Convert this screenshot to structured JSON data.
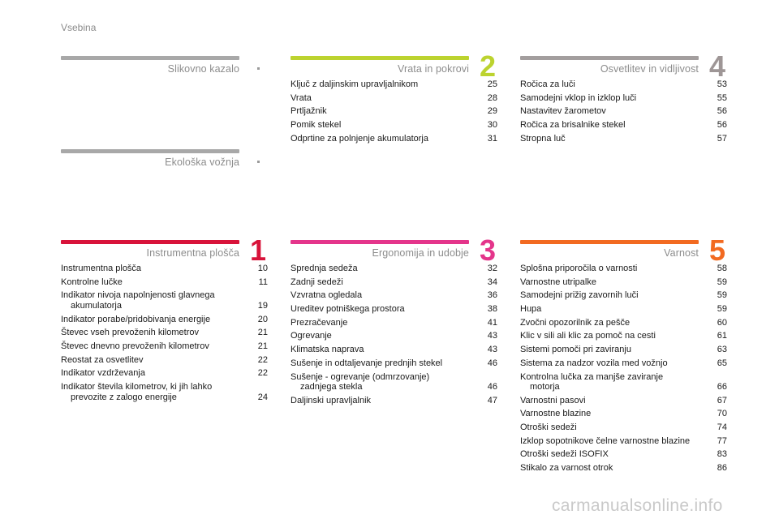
{
  "header": "Vsebina",
  "colors": {
    "gray": "#9e9e9e",
    "green": "#bcd32f",
    "red": "#d8133a",
    "pink": "#e4358b",
    "orange": "#f26a21",
    "gray4": "#9e9e9e"
  },
  "sec_slikovno": {
    "title": "Slikovno kazalo"
  },
  "sec_ekoloska": {
    "title": "Ekološka vožnja"
  },
  "sec_2": {
    "title": "Vrata in pokrovi",
    "num": "2",
    "entries": [
      {
        "label": "Ključ z daljinskim upravljalnikom",
        "page": "25"
      },
      {
        "label": "Vrata",
        "page": "28"
      },
      {
        "label": "Prtljažnik",
        "page": "29"
      },
      {
        "label": "Pomik stekel",
        "page": "30"
      },
      {
        "label": "Odprtine za polnjenje akumulatorja",
        "page": "31"
      }
    ]
  },
  "sec_4": {
    "title": "Osvetlitev in vidljivost",
    "num": "4",
    "entries": [
      {
        "label": "Ročica za luči",
        "page": "53"
      },
      {
        "label": "Samodejni vklop in izklop luči",
        "page": "55"
      },
      {
        "label": "Nastavitev žarometov",
        "page": "56"
      },
      {
        "label": "Ročica za brisalnike stekel",
        "page": "56"
      },
      {
        "label": "Stropna luč",
        "page": "57"
      }
    ]
  },
  "sec_1": {
    "title": "Instrumentna plošča",
    "num": "1",
    "entries": [
      {
        "label": "Instrumentna plošča",
        "page": "10"
      },
      {
        "label": "Kontrolne lučke",
        "page": "11"
      },
      {
        "label": "Indikator nivoja napolnjenosti glavnega",
        "label2": "akumulatorja",
        "page": "19"
      },
      {
        "label": "Indikator porabe/pridobivanja energije",
        "page": "20"
      },
      {
        "label": "Števec vseh prevoženih kilometrov",
        "page": "21"
      },
      {
        "label": "Števec dnevno prevoženih kilometrov",
        "page": "21"
      },
      {
        "label": "Reostat za osvetlitev",
        "page": "22"
      },
      {
        "label": "Indikator vzdrževanja",
        "page": "22"
      },
      {
        "label": "Indikator števila kilometrov, ki jih lahko",
        "label2": "prevozite z zalogo energije",
        "page": "24"
      }
    ]
  },
  "sec_3": {
    "title": "Ergonomija in udobje",
    "num": "3",
    "entries": [
      {
        "label": "Sprednja sedeža",
        "page": "32"
      },
      {
        "label": "Zadnji sedeži",
        "page": "34"
      },
      {
        "label": "Vzvratna ogledala",
        "page": "36"
      },
      {
        "label": "Ureditev potniškega prostora",
        "page": "38"
      },
      {
        "label": "Prezračevanje",
        "page": "41"
      },
      {
        "label": "Ogrevanje",
        "page": "43"
      },
      {
        "label": "Klimatska naprava",
        "page": "43"
      },
      {
        "label": "Sušenje in odtaljevanje prednjih stekel",
        "page": "46"
      },
      {
        "label": "Sušenje - ogrevanje (odmrzovanje)",
        "label2": "zadnjega stekla",
        "page": "46"
      },
      {
        "label": "Daljinski upravljalnik",
        "page": "47"
      }
    ]
  },
  "sec_5": {
    "title": "Varnost",
    "num": "5",
    "entries": [
      {
        "label": "Splošna priporočila o varnosti",
        "page": "58"
      },
      {
        "label": "Varnostne utripalke",
        "page": "59"
      },
      {
        "label": "Samodejni prižig zavornih luči",
        "page": "59"
      },
      {
        "label": "Hupa",
        "page": "59"
      },
      {
        "label": "Zvočni opozorilnik za pešče",
        "page": "60"
      },
      {
        "label": "Klic v sili ali klic za pomoč na cesti",
        "page": "61"
      },
      {
        "label": "Sistemi pomoči pri zaviranju",
        "page": "63"
      },
      {
        "label": "Sistema za nadzor vozila med vožnjo",
        "page": "65"
      },
      {
        "label": "Kontrolna lučka za manjše zaviranje",
        "label2": "motorja",
        "page": "66"
      },
      {
        "label": "Varnostni pasovi",
        "page": "67"
      },
      {
        "label": "Varnostne blazine",
        "page": "70"
      },
      {
        "label": "Otroški sedeži",
        "page": "74"
      },
      {
        "label": "Izklop sopotnikove čelne varnostne blazine",
        "page": "77"
      },
      {
        "label": "Otroški sedeži ISOFIX",
        "page": "83"
      },
      {
        "label": "Stikalo za varnost otrok",
        "page": "86"
      }
    ]
  },
  "watermark": "carmanualsonline.info"
}
